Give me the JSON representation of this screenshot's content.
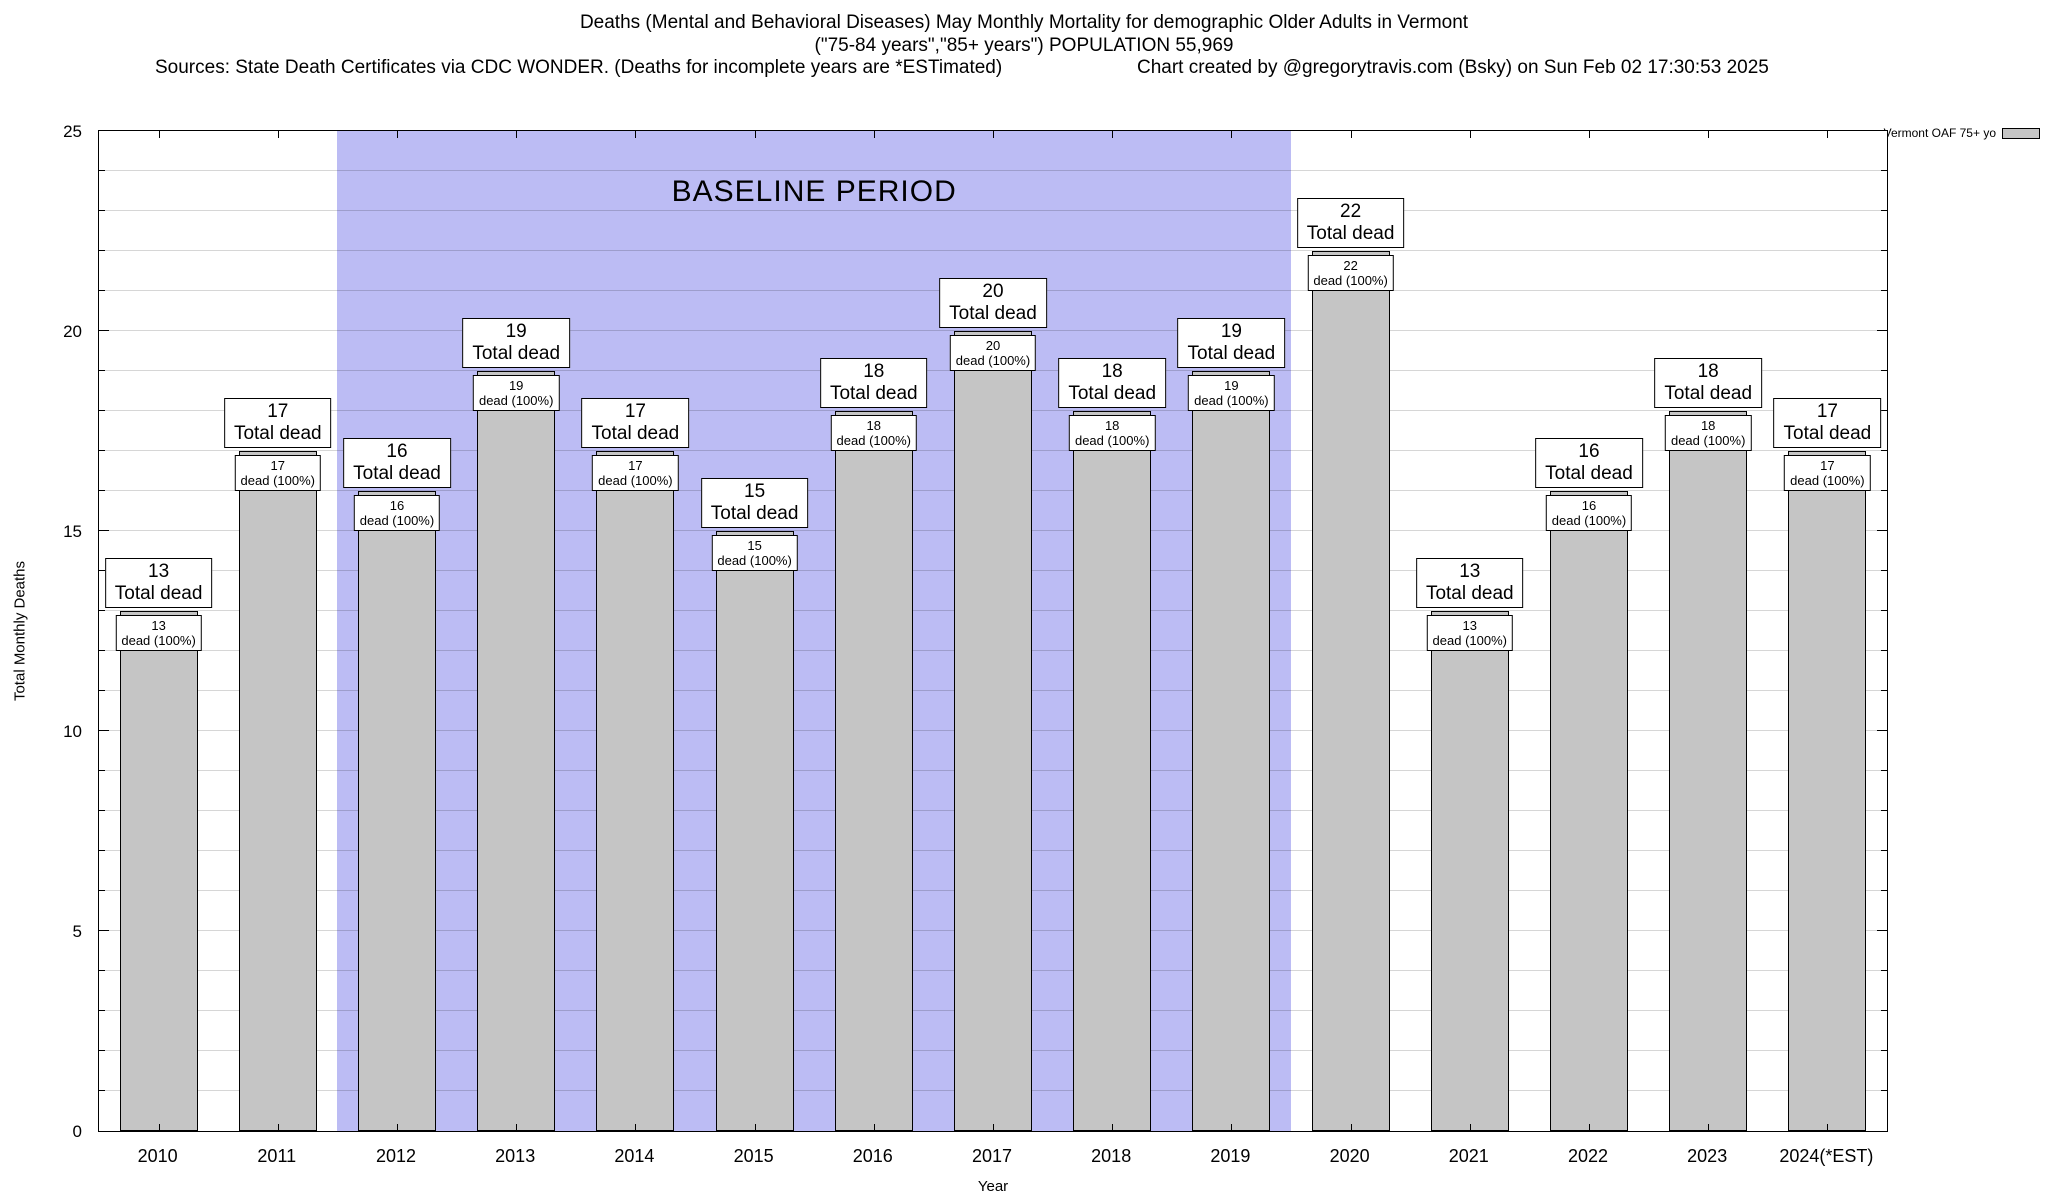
{
  "header": {
    "title_line1": "Deaths (Mental and Behavioral Diseases) May Monthly Mortality for demographic Older Adults in Vermont",
    "title_line2": "(\"75-84 years\",\"85+ years\") POPULATION 55,969",
    "sources": "Sources: State Death Certificates via CDC WONDER. (Deaths for incomplete years are *ESTimated)",
    "credit": "Chart created by @gregorytravis.com (Bsky) on Sun Feb 02 17:30:53 2025"
  },
  "chart_data": {
    "type": "bar",
    "title": "Deaths (Mental and Behavioral Diseases) May Monthly Mortality for demographic Older Adults in Vermont",
    "subtitle": "(\"75-84 years\",\"85+ years\") POPULATION 55,969",
    "xlabel": "Year",
    "ylabel": "Total Monthly Deaths",
    "ylim": [
      0,
      25
    ],
    "yticks": [
      0,
      5,
      10,
      15,
      20,
      25
    ],
    "grid": "horizontal, every 1 unit",
    "categories": [
      "2010",
      "2011",
      "2012",
      "2013",
      "2014",
      "2015",
      "2016",
      "2017",
      "2018",
      "2019",
      "2020",
      "2021",
      "2022",
      "2023",
      "2024(*EST)"
    ],
    "values": [
      13,
      17,
      16,
      19,
      17,
      15,
      18,
      20,
      18,
      19,
      22,
      13,
      16,
      18,
      17
    ],
    "bar_color": "#c5c5c5",
    "baseline": {
      "label": "BASELINE PERIOD",
      "start_category": "2012",
      "end_category": "2019",
      "color": "#bcbcf4"
    },
    "legend": {
      "label": "Vermont OAF 75+ yo",
      "position": "top-right"
    },
    "annotations": {
      "total_label_suffix": "Total dead",
      "bar_label_suffix": "dead (100%)"
    }
  }
}
